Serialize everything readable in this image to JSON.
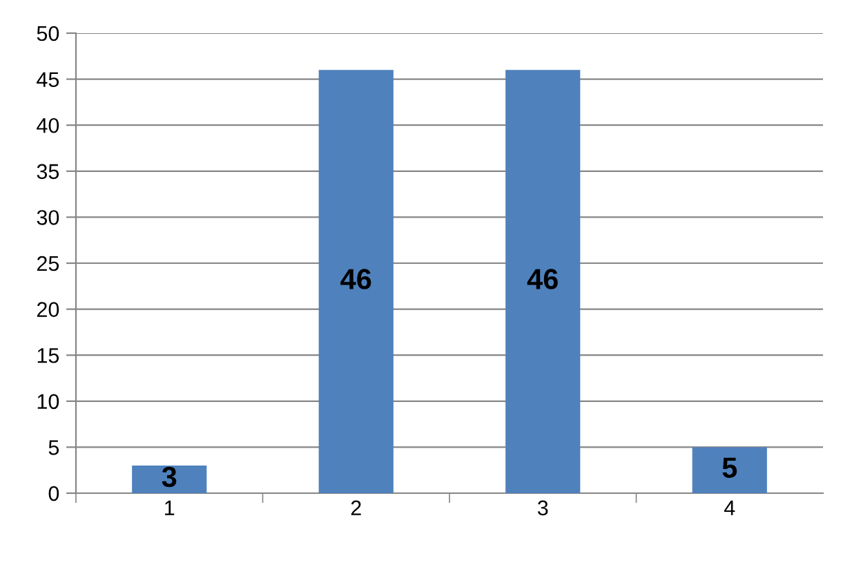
{
  "chart_data": {
    "type": "bar",
    "categories": [
      "1",
      "2",
      "3",
      "4"
    ],
    "values": [
      3,
      46,
      46,
      5
    ],
    "color": "#4f81bd",
    "data_labels": true,
    "ylim": [
      0,
      50
    ],
    "yticks": [
      0,
      5,
      10,
      15,
      20,
      25,
      30,
      35,
      40,
      45,
      50
    ],
    "grid": "y",
    "legend": false
  }
}
